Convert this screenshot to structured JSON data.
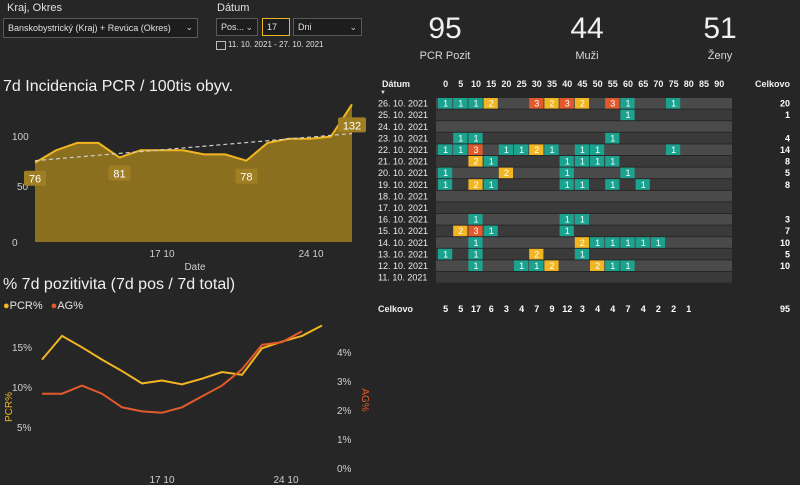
{
  "filters": {
    "region_label": "Kraj, Okres",
    "region_value": "Banskobystrický (Kraj) + Revúca (Okres)",
    "date_label": "Dátum",
    "date_mode": "Pos...",
    "date_count": "17",
    "date_unit": "Dni",
    "date_range": "11. 10. 2021 - 27. 10. 2021"
  },
  "kpis": [
    {
      "value": "95",
      "label": "PCR Pozit"
    },
    {
      "value": "44",
      "label": "Muži"
    },
    {
      "value": "51",
      "label": "Ženy"
    }
  ],
  "incidence_chart": {
    "title": "7d Incidencia PCR / 100tis obyv.",
    "xlabel": "Date",
    "x_ticks": [
      "17 10",
      "24 10"
    ],
    "y_ticks": [
      "0",
      "50",
      "100"
    ],
    "data_labels": [
      "76",
      "81",
      "78",
      "132"
    ]
  },
  "positivity_chart": {
    "title": "% 7d pozitivita (7d pos / 7d total)",
    "legend": [
      "PCR%",
      "AG%"
    ],
    "ylabel_left": "PCR%",
    "ylabel_right": "AG%",
    "y_ticks_left": [
      "5%",
      "10%",
      "15%"
    ],
    "y_ticks_right": [
      "0%",
      "1%",
      "2%",
      "3%",
      "4%"
    ],
    "x_ticks": [
      "17 10",
      "24 10"
    ]
  },
  "matrix": {
    "date_header": "Dátum",
    "total_header": "Celkovo",
    "total_row_label": "Celkovo",
    "ages": [
      "0",
      "5",
      "10",
      "15",
      "20",
      "25",
      "30",
      "35",
      "40",
      "45",
      "50",
      "55",
      "60",
      "65",
      "70",
      "75",
      "80",
      "85",
      "90"
    ],
    "dates": [
      "26. 10. 2021",
      "25. 10. 2021",
      "24. 10. 2021",
      "23. 10. 2021",
      "22. 10. 2021",
      "21. 10. 2021",
      "20. 10. 2021",
      "19. 10. 2021",
      "18. 10. 2021",
      "17. 10. 2021",
      "16. 10. 2021",
      "15. 10. 2021",
      "14. 10. 2021",
      "13. 10. 2021",
      "12. 10. 2021",
      "11. 10. 2021"
    ],
    "row_totals": [
      "20",
      "1",
      "",
      "4",
      "14",
      "8",
      "5",
      "8",
      "",
      "",
      "3",
      "7",
      "10",
      "5",
      "10",
      ""
    ],
    "col_totals": [
      "5",
      "5",
      "17",
      "6",
      "3",
      "4",
      "7",
      "9",
      "12",
      "3",
      "4",
      "4",
      "7",
      "4",
      "2",
      "2",
      "1"
    ],
    "grand_total": "95"
  },
  "chart_data": [
    {
      "type": "area",
      "title": "7d Incidencia PCR / 100tis obyv.",
      "xlabel": "Date",
      "ylabel": "",
      "x": [
        "2021-10-11",
        "2021-10-12",
        "2021-10-13",
        "2021-10-14",
        "2021-10-15",
        "2021-10-16",
        "2021-10-17",
        "2021-10-18",
        "2021-10-19",
        "2021-10-20",
        "2021-10-21",
        "2021-10-22",
        "2021-10-23",
        "2021-10-24",
        "2021-10-25",
        "2021-10-26"
      ],
      "series": [
        {
          "values": [
            76,
            88,
            95,
            95,
            81,
            88,
            88,
            88,
            84,
            84,
            78,
            95,
            99,
            99,
            101,
            132
          ]
        }
      ],
      "trend": [
        78,
        104
      ],
      "ylim": [
        0,
        140
      ]
    },
    {
      "type": "line",
      "title": "% 7d pozitivita (7d pos / 7d total)",
      "x": [
        "2021-10-12",
        "2021-10-13",
        "2021-10-14",
        "2021-10-15",
        "2021-10-16",
        "2021-10-17",
        "2021-10-18",
        "2021-10-19",
        "2021-10-20",
        "2021-10-21",
        "2021-10-22",
        "2021-10-23",
        "2021-10-24",
        "2021-10-25",
        "2021-10-26"
      ],
      "series": [
        {
          "name": "PCR%",
          "axis": "left",
          "values": [
            13.8,
            16.3,
            15.1,
            13.8,
            12.6,
            11.3,
            11.6,
            11.2,
            11.8,
            12.5,
            12.2,
            15.0,
            15.7,
            16.3,
            17.4
          ]
        },
        {
          "name": "AG%",
          "axis": "right",
          "values": [
            2.6,
            2.6,
            2.9,
            2.6,
            2.1,
            1.95,
            1.9,
            2.1,
            2.5,
            2.9,
            3.5,
            4.4,
            4.5,
            4.9,
            null
          ]
        }
      ],
      "ylim_left": [
        2.5,
        18.5
      ],
      "ylim_right": [
        -0.1,
        5.5
      ]
    },
    {
      "type": "heatmap",
      "rows": [
        "26. 10. 2021",
        "25. 10. 2021",
        "24. 10. 2021",
        "23. 10. 2021",
        "22. 10. 2021",
        "21. 10. 2021",
        "20. 10. 2021",
        "19. 10. 2021",
        "18. 10. 2021",
        "17. 10. 2021",
        "16. 10. 2021",
        "15. 10. 2021",
        "14. 10. 2021",
        "13. 10. 2021",
        "12. 10. 2021",
        "11. 10. 2021"
      ],
      "columns": [
        "0",
        "5",
        "10",
        "15",
        "20",
        "25",
        "30",
        "35",
        "40",
        "45",
        "50",
        "55",
        "60",
        "65",
        "70",
        "75",
        "80",
        "85",
        "90"
      ],
      "cells": [
        [
          0,
          0,
          1
        ],
        [
          0,
          1,
          1
        ],
        [
          0,
          2,
          1
        ],
        [
          0,
          3,
          2
        ],
        [
          0,
          6,
          3
        ],
        [
          0,
          7,
          2
        ],
        [
          0,
          8,
          3
        ],
        [
          0,
          9,
          2
        ],
        [
          0,
          11,
          3
        ],
        [
          0,
          12,
          1
        ],
        [
          0,
          15,
          1
        ],
        [
          1,
          12,
          1
        ],
        [
          3,
          1,
          1
        ],
        [
          3,
          2,
          1
        ],
        [
          3,
          11,
          1
        ],
        [
          4,
          0,
          1
        ],
        [
          4,
          1,
          1
        ],
        [
          4,
          2,
          3
        ],
        [
          4,
          4,
          1
        ],
        [
          4,
          5,
          1
        ],
        [
          4,
          6,
          2
        ],
        [
          4,
          7,
          1
        ],
        [
          4,
          9,
          1
        ],
        [
          4,
          10,
          1
        ],
        [
          4,
          15,
          1
        ],
        [
          5,
          2,
          2
        ],
        [
          5,
          3,
          1
        ],
        [
          5,
          8,
          1
        ],
        [
          5,
          9,
          1
        ],
        [
          5,
          10,
          1
        ],
        [
          5,
          11,
          1
        ],
        [
          6,
          0,
          1
        ],
        [
          6,
          4,
          2
        ],
        [
          6,
          8,
          1
        ],
        [
          6,
          12,
          1
        ],
        [
          7,
          0,
          1
        ],
        [
          7,
          2,
          2
        ],
        [
          7,
          3,
          1
        ],
        [
          7,
          8,
          1
        ],
        [
          7,
          9,
          1
        ],
        [
          7,
          11,
          1
        ],
        [
          7,
          13,
          1
        ],
        [
          10,
          2,
          1
        ],
        [
          10,
          8,
          1
        ],
        [
          10,
          9,
          1
        ],
        [
          11,
          1,
          2
        ],
        [
          11,
          2,
          3
        ],
        [
          11,
          3,
          1
        ],
        [
          11,
          8,
          1
        ],
        [
          12,
          2,
          1
        ],
        [
          12,
          9,
          2
        ],
        [
          12,
          10,
          1
        ],
        [
          12,
          11,
          1
        ],
        [
          12,
          12,
          1
        ],
        [
          12,
          13,
          1
        ],
        [
          12,
          14,
          1
        ],
        [
          13,
          0,
          1
        ],
        [
          13,
          2,
          1
        ],
        [
          13,
          6,
          2
        ],
        [
          13,
          9,
          1
        ],
        [
          14,
          2,
          1
        ],
        [
          14,
          5,
          1
        ],
        [
          14,
          6,
          1
        ],
        [
          14,
          7,
          2
        ],
        [
          14,
          10,
          2
        ],
        [
          14,
          11,
          1
        ],
        [
          14,
          12,
          1
        ]
      ]
    }
  ],
  "colors": {
    "background": "#262626",
    "area_fill": "#8a6f1e",
    "area_line": "#f2b623",
    "pcr_line": "#f2b623",
    "ag_line": "#e25a2c",
    "cell_one": "#1ba38f",
    "cell_two": "#f2b623",
    "cell_three": "#e25a2c",
    "row_odd": "#4a4a4a",
    "row_even": "#3a3a3a"
  }
}
